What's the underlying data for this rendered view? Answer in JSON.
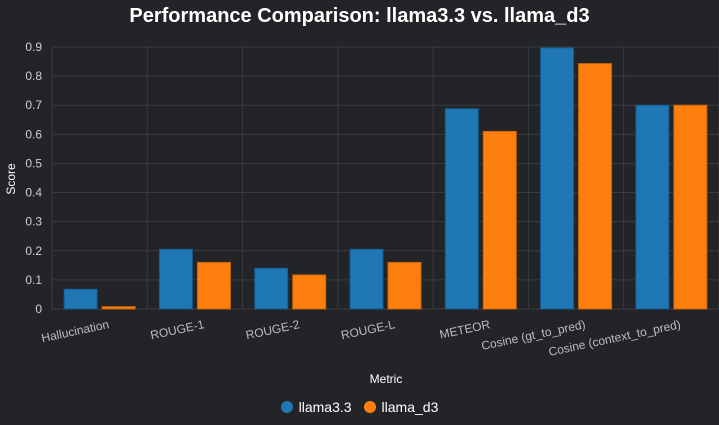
{
  "chart_data": {
    "type": "bar",
    "title": "Performance Comparison: llama3.3 vs. llama_d3",
    "xlabel": "Metric",
    "ylabel": "Score",
    "ylim": [
      0,
      0.9
    ],
    "yticks": [
      "0",
      "0.1",
      "0.2",
      "0.3",
      "0.4",
      "0.5",
      "0.6",
      "0.7",
      "0.8",
      "0.9"
    ],
    "categories": [
      "Hallucination",
      "ROUGE-1",
      "ROUGE-2",
      "ROUGE-L",
      "METEOR",
      "Cosine (gt_to_pred)",
      "Cosine (context_to_pred)"
    ],
    "series": [
      {
        "name": "llama3.3",
        "color": "#1f77b4",
        "values": [
          0.068,
          0.205,
          0.14,
          0.205,
          0.688,
          0.897,
          0.7
        ]
      },
      {
        "name": "llama_d3",
        "color": "#ff7f0e",
        "values": [
          0.008,
          0.16,
          0.117,
          0.16,
          0.61,
          0.843,
          0.7
        ]
      }
    ],
    "grid": true,
    "legend_position": "bottom-center",
    "background": "#232428"
  }
}
